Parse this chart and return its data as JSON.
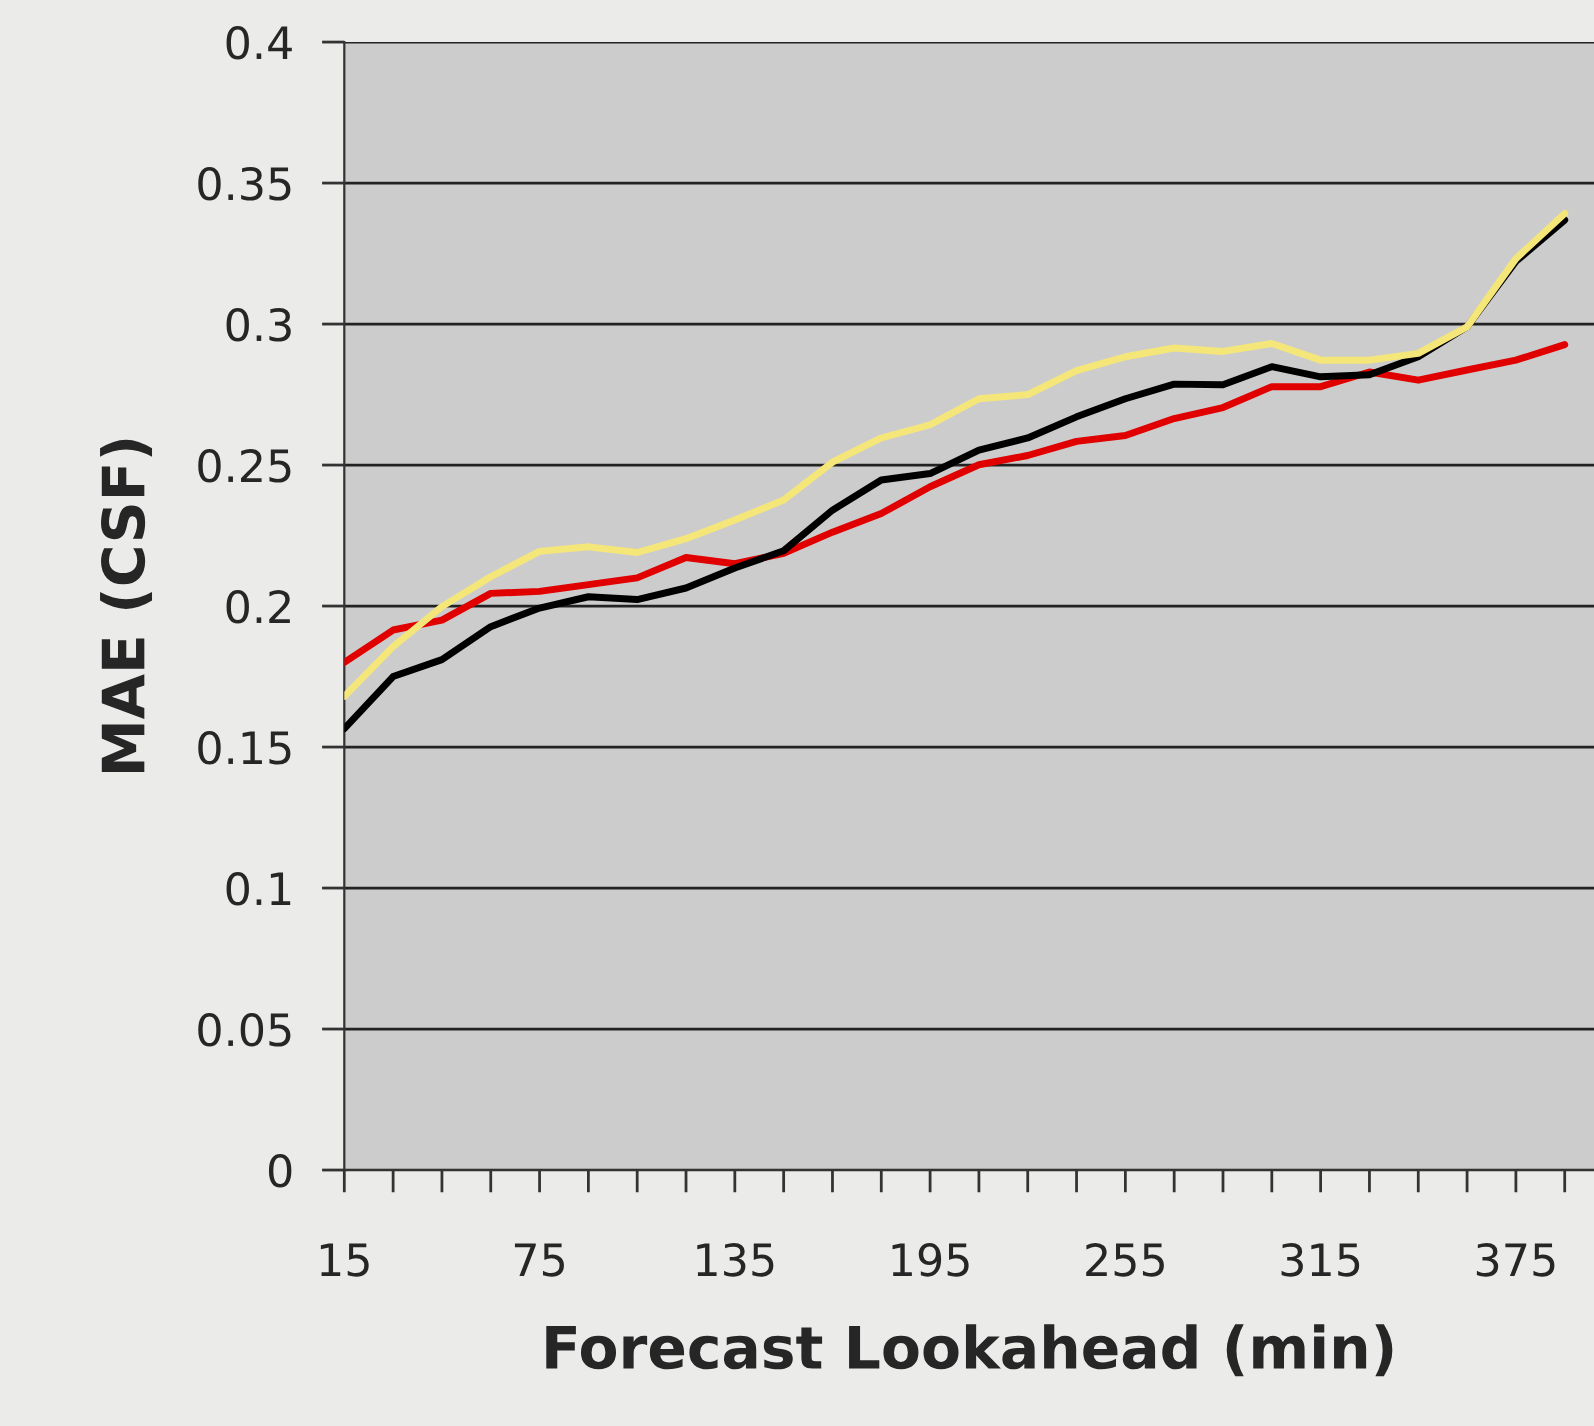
{
  "chart_data": {
    "type": "line",
    "xlabel": "Forecast Lookahead (min)",
    "ylabel": "MAE (CSF)",
    "x": [
      15,
      30,
      45,
      60,
      75,
      90,
      105,
      120,
      135,
      150,
      165,
      180,
      195,
      210,
      225,
      240,
      255,
      270,
      285,
      300,
      315,
      330,
      345,
      360,
      375,
      390
    ],
    "series": [
      {
        "color": "#e00000",
        "values": [
          0.18,
          0.1915,
          0.195,
          0.2045,
          0.2052,
          0.2076,
          0.21,
          0.2172,
          0.215,
          0.2187,
          0.2262,
          0.2328,
          0.2423,
          0.2501,
          0.2534,
          0.2584,
          0.2605,
          0.2665,
          0.2704,
          0.2778,
          0.2778,
          0.283,
          0.2801,
          0.2837,
          0.2872,
          0.2927
        ]
      },
      {
        "color": "#000000",
        "values": [
          0.1565,
          0.175,
          0.181,
          0.1927,
          0.1993,
          0.2033,
          0.2023,
          0.2064,
          0.2135,
          0.2196,
          0.234,
          0.2447,
          0.247,
          0.2553,
          0.2596,
          0.2671,
          0.2735,
          0.2787,
          0.2785,
          0.2849,
          0.2813,
          0.282,
          0.2884,
          0.299,
          0.3222,
          0.3369
        ]
      },
      {
        "color": "#f5e67a",
        "values": [
          0.168,
          0.1856,
          0.1998,
          0.2104,
          0.2194,
          0.221,
          0.219,
          0.2239,
          0.2305,
          0.2376,
          0.251,
          0.2596,
          0.2643,
          0.2735,
          0.275,
          0.2835,
          0.2884,
          0.2915,
          0.2903,
          0.2931,
          0.2872,
          0.2872,
          0.2896,
          0.299,
          0.3232,
          0.3392
        ]
      }
    ],
    "xlim": [
      15,
      399
    ],
    "xticks": [
      15,
      {
        "value": 30,
        "label": null
      },
      {
        "value": 45,
        "label": null
      },
      {
        "value": 60,
        "label": null
      },
      75,
      {
        "value": 90,
        "label": null
      },
      {
        "value": 105,
        "label": null
      },
      {
        "value": 120,
        "label": null
      },
      135,
      {
        "value": 150,
        "label": null
      },
      {
        "value": 165,
        "label": null
      },
      {
        "value": 180,
        "label": null
      },
      195,
      {
        "value": 210,
        "label": null
      },
      {
        "value": 225,
        "label": null
      },
      {
        "value": 240,
        "label": null
      },
      255,
      {
        "value": 270,
        "label": null
      },
      {
        "value": 285,
        "label": null
      },
      {
        "value": 300,
        "label": null
      },
      315,
      {
        "value": 330,
        "label": null
      },
      {
        "value": 345,
        "label": null
      },
      {
        "value": 360,
        "label": null
      },
      375,
      {
        "value": 390,
        "label": null
      }
    ],
    "ylim": [
      0,
      0.4
    ],
    "yticks": [
      0,
      0.05,
      0.1,
      0.15,
      0.2,
      0.25,
      0.3,
      0.35,
      0.4
    ],
    "grid": "y",
    "legend": false,
    "marker": "none",
    "line_style": "solid"
  }
}
